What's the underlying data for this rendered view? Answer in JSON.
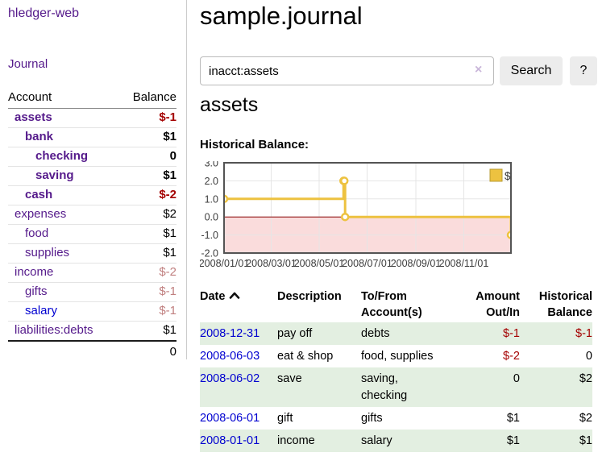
{
  "app": {
    "title": "hledger-web",
    "nav_journal": "Journal"
  },
  "colors": {
    "link_purple": "#551a8b",
    "link_blue": "#0000d0",
    "negative_red": "#a40000",
    "faded_red": "#c07f7f",
    "row_green": "#e3efe1"
  },
  "sidebar": {
    "header": {
      "account": "Account",
      "balance": "Balance"
    },
    "accounts": [
      {
        "name": "assets",
        "indent": 1,
        "bold": true,
        "balance": "$-1",
        "balance_color": "negative",
        "link_color": "purple"
      },
      {
        "name": "bank",
        "indent": 2,
        "bold": true,
        "balance": "$1",
        "balance_color": "normal",
        "link_color": "purple"
      },
      {
        "name": "checking",
        "indent": 3,
        "bold": true,
        "balance": "0",
        "balance_color": "normal",
        "link_color": "purple"
      },
      {
        "name": "saving",
        "indent": 3,
        "bold": true,
        "balance": "$1",
        "balance_color": "normal",
        "link_color": "purple"
      },
      {
        "name": "cash",
        "indent": 2,
        "bold": true,
        "balance": "$-2",
        "balance_color": "negative",
        "link_color": "purple"
      },
      {
        "name": "expenses",
        "indent": 1,
        "bold": false,
        "balance": "$2",
        "balance_color": "normal",
        "link_color": "purple"
      },
      {
        "name": "food",
        "indent": 2,
        "bold": false,
        "balance": "$1",
        "balance_color": "normal",
        "link_color": "purple"
      },
      {
        "name": "supplies",
        "indent": 2,
        "bold": false,
        "balance": "$1",
        "balance_color": "normal",
        "link_color": "purple"
      },
      {
        "name": "income",
        "indent": 1,
        "bold": false,
        "balance": "$-2",
        "balance_color": "faded",
        "link_color": "purple"
      },
      {
        "name": "gifts",
        "indent": 2,
        "bold": false,
        "balance": "$-1",
        "balance_color": "faded",
        "link_color": "purple"
      },
      {
        "name": "salary",
        "indent": 2,
        "bold": false,
        "balance": "$-1",
        "balance_color": "faded",
        "link_color": "blue"
      },
      {
        "name": "liabilities:debts",
        "indent": 1,
        "bold": false,
        "balance": "$1",
        "balance_color": "normal",
        "link_color": "purple"
      }
    ],
    "total": "0"
  },
  "main": {
    "title": "sample.journal",
    "search": {
      "value": "inacct:assets",
      "clear_icon": "×",
      "button": "Search",
      "help_button": "?"
    },
    "account_heading": "assets",
    "chart_label": "Historical Balance:"
  },
  "chart_data": {
    "type": "line",
    "step": true,
    "title": "Historical Balance",
    "series": [
      {
        "name": "$",
        "color": "#edc240",
        "points": [
          [
            "2008-01-01",
            1
          ],
          [
            "2008-06-01",
            2
          ],
          [
            "2008-06-02",
            2
          ],
          [
            "2008-06-03",
            0
          ],
          [
            "2008-12-31",
            -1
          ]
        ]
      }
    ],
    "x_range": [
      "2008-01-01",
      "2008-12-31"
    ],
    "ylim": [
      -2.0,
      3.0
    ],
    "y_ticks": [
      "3.0",
      "2.0",
      "1.0",
      "0.0",
      "-1.0",
      "-2.0"
    ],
    "x_ticks": [
      "2008/01/01",
      "2008/03/01",
      "2008/05/01",
      "2008/07/01",
      "2008/09/01",
      "2008/11/01"
    ],
    "legend": {
      "label": "$",
      "position": "top-right"
    },
    "grid": true,
    "negative_region_fill": "#fadcdc",
    "zero_line_color": "#8b0000",
    "border_color": "#545454"
  },
  "table": {
    "headers": [
      {
        "key": "date",
        "label": "Date",
        "align": "left",
        "sortable": true,
        "sort": "asc",
        "sort_icon": "chevron-up"
      },
      {
        "key": "description",
        "label": "Description",
        "align": "left",
        "sortable": false
      },
      {
        "key": "accounts",
        "label": "To/From Account(s)",
        "align": "left",
        "sortable": false
      },
      {
        "key": "amount",
        "label": "Amount Out/In",
        "align": "right",
        "sortable": false
      },
      {
        "key": "balance",
        "label": "Historical Balance",
        "align": "right",
        "sortable": false
      }
    ],
    "rows": [
      {
        "date": "2008-12-31",
        "description": "pay off",
        "accounts": "debts",
        "amount": "$-1",
        "balance": "$-1"
      },
      {
        "date": "2008-06-03",
        "description": "eat & shop",
        "accounts": "food, supplies",
        "amount": "$-2",
        "balance": "0"
      },
      {
        "date": "2008-06-02",
        "description": "save",
        "accounts": "saving, checking",
        "amount": "0",
        "balance": "$2"
      },
      {
        "date": "2008-06-01",
        "description": "gift",
        "accounts": "gifts",
        "amount": "$1",
        "balance": "$2"
      },
      {
        "date": "2008-01-01",
        "description": "income",
        "accounts": "salary",
        "amount": "$1",
        "balance": "$1"
      }
    ]
  }
}
